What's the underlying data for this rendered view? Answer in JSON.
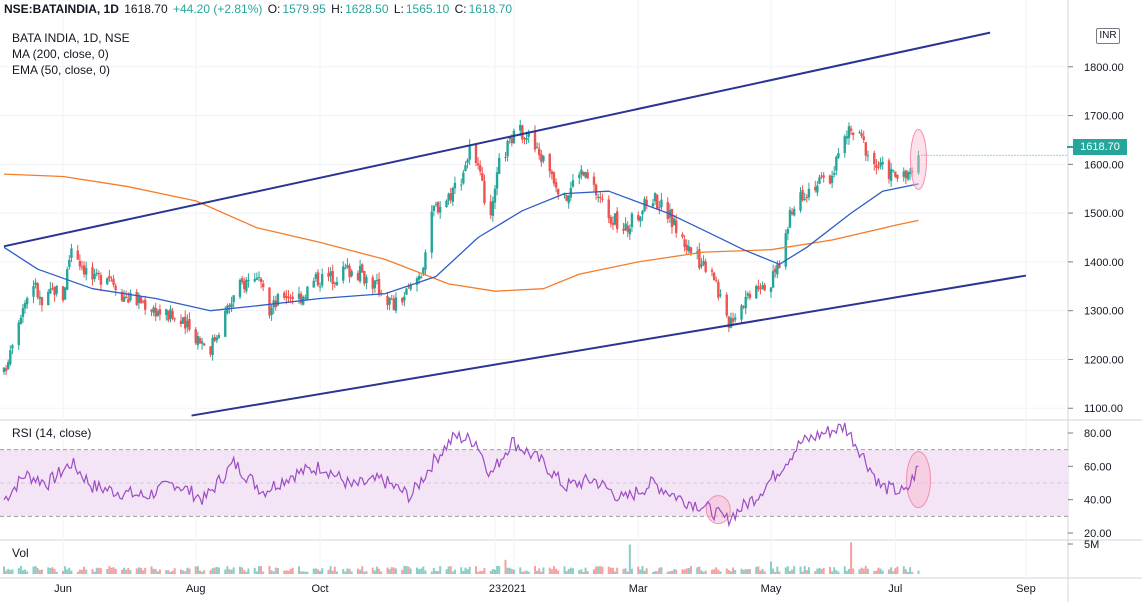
{
  "header": {
    "symbol": "NSE:BATAINDIA, 1D",
    "last": "1618.70",
    "change": "+44.20 (+2.81%)",
    "o_label": "O:",
    "o_val": "1579.95",
    "h_label": "H:",
    "h_val": "1628.50",
    "l_label": "L:",
    "l_val": "1565.10",
    "c_label": "C:",
    "c_val": "1618.70"
  },
  "legend": {
    "title": "BATA INDIA, 1D, NSE",
    "ma": "MA (200, close, 0)",
    "ema": "EMA (50, close, 0)",
    "rsi": "RSI (14, close)",
    "vol": "Vol"
  },
  "currency": "INR",
  "last_price_tag": "1618.70",
  "colors": {
    "up": "#26a69a",
    "down": "#ef5350",
    "ma200": "#f57c2a",
    "ema50": "#2e5ec9",
    "channel": "#283593",
    "rsi": "#9c4dc4",
    "rsi_band": "#f3e5f5",
    "highlight": "#f8bbd0"
  },
  "chart_data": [
    {
      "type": "candlestick",
      "title": "BATA INDIA, 1D, NSE",
      "ylim": [
        1080,
        1900
      ],
      "y_ticks": [
        "1800.00",
        "1700.00",
        "1600.00",
        "1500.00",
        "1400.00",
        "1300.00",
        "1200.00",
        "1100.00"
      ],
      "y_tick_values": [
        1800,
        1700,
        1600,
        1500,
        1400,
        1300,
        1200,
        1100
      ],
      "x_ticks": [
        "Jun",
        "Aug",
        "Oct",
        "23",
        "2021",
        "Mar",
        "May",
        "Jul",
        "Sep"
      ],
      "x_range": [
        "2020-05-04",
        "2021-09-20"
      ],
      "x_tick_dates": [
        "2020-06-01",
        "2020-08-03",
        "2020-10-01",
        "2020-12-23",
        "2021-01-01",
        "2021-03-01",
        "2021-05-03",
        "2021-07-01",
        "2021-09-01"
      ],
      "close_path": [
        [
          "2020-05-04",
          1170
        ],
        [
          "2020-05-08",
          1245
        ],
        [
          "2020-05-12",
          1300
        ],
        [
          "2020-05-18",
          1360
        ],
        [
          "2020-05-22",
          1310
        ],
        [
          "2020-05-28",
          1345
        ],
        [
          "2020-06-01",
          1330
        ],
        [
          "2020-06-05",
          1435
        ],
        [
          "2020-06-10",
          1395
        ],
        [
          "2020-06-16",
          1360
        ],
        [
          "2020-06-22",
          1380
        ],
        [
          "2020-06-30",
          1330
        ],
        [
          "2020-07-08",
          1320
        ],
        [
          "2020-07-16",
          1300
        ],
        [
          "2020-07-24",
          1285
        ],
        [
          "2020-08-03",
          1250
        ],
        [
          "2020-08-10",
          1225
        ],
        [
          "2020-08-17",
          1295
        ],
        [
          "2020-08-24",
          1350
        ],
        [
          "2020-08-31",
          1375
        ],
        [
          "2020-09-07",
          1300
        ],
        [
          "2020-09-14",
          1335
        ],
        [
          "2020-09-22",
          1330
        ],
        [
          "2020-09-29",
          1365
        ],
        [
          "2020-10-07",
          1370
        ],
        [
          "2020-10-14",
          1385
        ],
        [
          "2020-10-21",
          1375
        ],
        [
          "2020-10-28",
          1350
        ],
        [
          "2020-11-05",
          1310
        ],
        [
          "2020-11-12",
          1340
        ],
        [
          "2020-11-18",
          1380
        ],
        [
          "2020-11-24",
          1510
        ],
        [
          "2020-11-30",
          1530
        ],
        [
          "2020-12-07",
          1575
        ],
        [
          "2020-12-11",
          1630
        ],
        [
          "2020-12-16",
          1570
        ],
        [
          "2020-12-21",
          1480
        ],
        [
          "2020-12-25",
          1600
        ],
        [
          "2020-12-31",
          1655
        ],
        [
          "2021-01-06",
          1670
        ],
        [
          "2021-01-12",
          1625
        ],
        [
          "2021-01-18",
          1595
        ],
        [
          "2021-01-25",
          1525
        ],
        [
          "2021-02-01",
          1590
        ],
        [
          "2021-02-08",
          1550
        ],
        [
          "2021-02-15",
          1500
        ],
        [
          "2021-02-22",
          1460
        ],
        [
          "2021-03-01",
          1500
        ],
        [
          "2021-03-08",
          1535
        ],
        [
          "2021-03-15",
          1500
        ],
        [
          "2021-03-22",
          1445
        ],
        [
          "2021-03-29",
          1405
        ],
        [
          "2021-04-05",
          1390
        ],
        [
          "2021-04-12",
          1275
        ],
        [
          "2021-04-19",
          1315
        ],
        [
          "2021-04-26",
          1360
        ],
        [
          "2021-05-03",
          1355
        ],
        [
          "2021-05-07",
          1400
        ],
        [
          "2021-05-12",
          1490
        ],
        [
          "2021-05-17",
          1540
        ],
        [
          "2021-05-24",
          1560
        ],
        [
          "2021-05-31",
          1570
        ],
        [
          "2021-06-04",
          1620
        ],
        [
          "2021-06-09",
          1670
        ],
        [
          "2021-06-15",
          1650
        ],
        [
          "2021-06-21",
          1600
        ],
        [
          "2021-06-28",
          1585
        ],
        [
          "2021-07-05",
          1570
        ],
        [
          "2021-07-08",
          1580
        ],
        [
          "2021-07-12",
          1618.7
        ]
      ],
      "series": [
        {
          "name": "MA (200, close, 0)",
          "points": [
            [
              "2020-05-04",
              1580
            ],
            [
              "2020-06-01",
              1575
            ],
            [
              "2020-07-01",
              1555
            ],
            [
              "2020-08-03",
              1525
            ],
            [
              "2020-09-01",
              1470
            ],
            [
              "2020-10-01",
              1440
            ],
            [
              "2020-11-01",
              1405
            ],
            [
              "2020-12-01",
              1355
            ],
            [
              "2020-12-23",
              1340
            ],
            [
              "2021-01-15",
              1345
            ],
            [
              "2021-02-01",
              1375
            ],
            [
              "2021-03-01",
              1400
            ],
            [
              "2021-04-01",
              1420
            ],
            [
              "2021-05-03",
              1425
            ],
            [
              "2021-06-01",
              1445
            ],
            [
              "2021-07-01",
              1475
            ],
            [
              "2021-07-12",
              1485
            ]
          ]
        },
        {
          "name": "EMA (50, close, 0)",
          "points": [
            [
              "2020-05-04",
              1430
            ],
            [
              "2020-05-20",
              1385
            ],
            [
              "2020-06-15",
              1345
            ],
            [
              "2020-07-15",
              1325
            ],
            [
              "2020-08-10",
              1300
            ],
            [
              "2020-09-01",
              1310
            ],
            [
              "2020-10-01",
              1325
            ],
            [
              "2020-11-01",
              1335
            ],
            [
              "2020-11-25",
              1370
            ],
            [
              "2020-12-15",
              1450
            ],
            [
              "2021-01-05",
              1505
            ],
            [
              "2021-01-25",
              1540
            ],
            [
              "2021-02-15",
              1545
            ],
            [
              "2021-03-15",
              1500
            ],
            [
              "2021-04-01",
              1465
            ],
            [
              "2021-04-20",
              1425
            ],
            [
              "2021-05-07",
              1395
            ],
            [
              "2021-05-20",
              1430
            ],
            [
              "2021-06-10",
              1500
            ],
            [
              "2021-06-25",
              1545
            ],
            [
              "2021-07-12",
              1560
            ]
          ]
        }
      ],
      "annotations": {
        "channel_upper": [
          [
            "2020-05-04",
            1432
          ],
          [
            "2021-08-15",
            1870
          ]
        ],
        "channel_lower": [
          [
            "2020-08-01",
            1085
          ],
          [
            "2021-09-01",
            1372
          ]
        ],
        "highlight_ellipse": {
          "date": "2021-07-12",
          "value": 1610
        }
      },
      "last_price": 1618.7
    },
    {
      "type": "line",
      "title": "RSI (14, close)",
      "ylim": [
        17,
        86
      ],
      "y_ticks": [
        "80.00",
        "60.00",
        "40.00",
        "20.00"
      ],
      "y_tick_values": [
        80,
        60,
        40,
        20
      ],
      "band": [
        30,
        70
      ],
      "mid": 50,
      "series": [
        {
          "name": "RSI (14, close)",
          "points": [
            [
              "2020-05-04",
              40
            ],
            [
              "2020-05-14",
              55
            ],
            [
              "2020-05-25",
              50
            ],
            [
              "2020-06-05",
              62
            ],
            [
              "2020-06-15",
              48
            ],
            [
              "2020-06-26",
              45
            ],
            [
              "2020-07-10",
              42
            ],
            [
              "2020-07-24",
              50
            ],
            [
              "2020-08-07",
              40
            ],
            [
              "2020-08-21",
              62
            ],
            [
              "2020-09-04",
              45
            ],
            [
              "2020-09-18",
              55
            ],
            [
              "2020-10-02",
              60
            ],
            [
              "2020-10-16",
              48
            ],
            [
              "2020-10-30",
              52
            ],
            [
              "2020-11-13",
              42
            ],
            [
              "2020-11-25",
              65
            ],
            [
              "2020-12-04",
              78
            ],
            [
              "2020-12-14",
              75
            ],
            [
              "2020-12-21",
              55
            ],
            [
              "2020-12-31",
              75
            ],
            [
              "2021-01-15",
              62
            ],
            [
              "2021-01-25",
              48
            ],
            [
              "2021-02-08",
              52
            ],
            [
              "2021-02-22",
              40
            ],
            [
              "2021-03-08",
              50
            ],
            [
              "2021-03-22",
              40
            ],
            [
              "2021-04-01",
              36
            ],
            [
              "2021-04-12",
              28
            ],
            [
              "2021-04-26",
              42
            ],
            [
              "2021-05-07",
              58
            ],
            [
              "2021-05-17",
              74
            ],
            [
              "2021-05-28",
              80
            ],
            [
              "2021-06-07",
              84
            ],
            [
              "2021-06-14",
              70
            ],
            [
              "2021-06-24",
              48
            ],
            [
              "2021-07-06",
              44
            ],
            [
              "2021-07-12",
              60
            ]
          ]
        }
      ],
      "annotations": {
        "highlights": [
          {
            "date": "2021-04-08",
            "value": 34
          },
          {
            "date": "2021-07-12",
            "value": 52
          }
        ]
      }
    },
    {
      "type": "bar",
      "title": "Vol",
      "y_ticks": [
        "5M"
      ],
      "y_tick_values": [
        5000000
      ],
      "ylim": [
        0,
        6000000
      ],
      "spikes": [
        [
          "2020-12-28",
          2500000
        ],
        [
          "2021-02-25",
          5200000
        ],
        [
          "2021-05-03",
          2200000
        ],
        [
          "2021-06-10",
          5600000
        ]
      ],
      "typical_volume": 900000
    }
  ]
}
